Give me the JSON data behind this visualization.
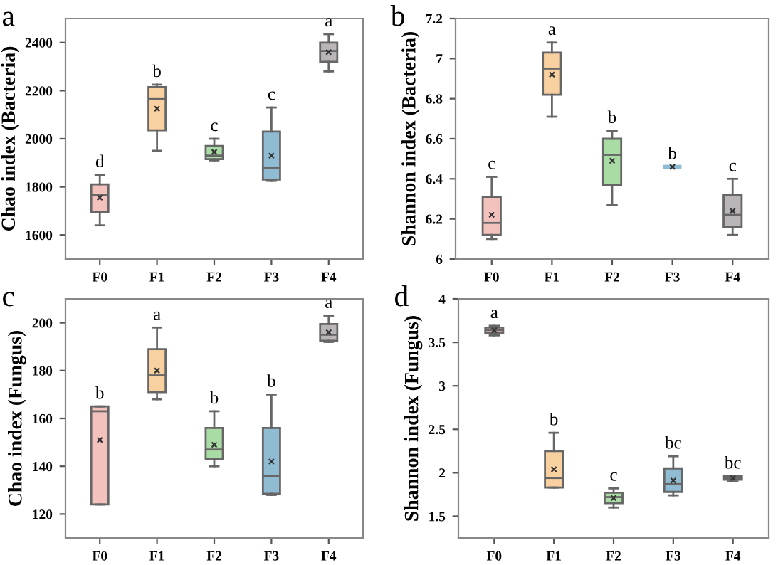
{
  "chart_data": [
    {
      "type": "box",
      "title": "a",
      "ylabel": "Chao index (Bacteria)",
      "categories": [
        "F0",
        "F1",
        "F2",
        "F3",
        "F4"
      ],
      "colors": [
        "#f4c2bd",
        "#f9d0a0",
        "#a9dca4",
        "#90bcd3",
        "#b9b5b9"
      ],
      "boxes": [
        {
          "low": 1640,
          "q1": 1695,
          "median": 1765,
          "q3": 1810,
          "high": 1850,
          "mean": 1755
        },
        {
          "low": 1950,
          "q1": 2035,
          "median": 2165,
          "q3": 2215,
          "high": 2225,
          "mean": 2125
        },
        {
          "low": 1910,
          "q1": 1915,
          "median": 1930,
          "q3": 1970,
          "high": 2000,
          "mean": 1945
        },
        {
          "low": 1825,
          "q1": 1830,
          "median": 1880,
          "q3": 2030,
          "high": 2130,
          "mean": 1930
        },
        {
          "low": 2280,
          "q1": 2320,
          "median": 2365,
          "q3": 2400,
          "high": 2435,
          "mean": 2360
        }
      ],
      "annotations": [
        "d",
        "b",
        "c",
        "c",
        "a"
      ],
      "ylim": [
        1500,
        2500
      ],
      "yticks": [
        1600,
        1800,
        2000,
        2200,
        2400
      ],
      "grid": false
    },
    {
      "type": "box",
      "title": "b",
      "ylabel": "Shannon index (Bacteria)",
      "categories": [
        "F0",
        "F1",
        "F2",
        "F3",
        "F4"
      ],
      "colors": [
        "#f4c2bd",
        "#f9d0a0",
        "#a9dca4",
        "#90bcd3",
        "#b9b5b9"
      ],
      "boxes": [
        {
          "low": 6.1,
          "q1": 6.12,
          "median": 6.18,
          "q3": 6.31,
          "high": 6.41,
          "mean": 6.22
        },
        {
          "low": 6.71,
          "q1": 6.82,
          "median": 6.95,
          "q3": 7.03,
          "high": 7.08,
          "mean": 6.92
        },
        {
          "low": 6.27,
          "q1": 6.37,
          "median": 6.52,
          "q3": 6.6,
          "high": 6.64,
          "mean": 6.49
        },
        {
          "low": 6.46,
          "q1": 6.46,
          "median": 6.46,
          "q3": 6.46,
          "high": 6.46,
          "mean": 6.46
        },
        {
          "low": 6.12,
          "q1": 6.16,
          "median": 6.22,
          "q3": 6.32,
          "high": 6.4,
          "mean": 6.24
        }
      ],
      "annotations": [
        "c",
        "a",
        "b",
        "b",
        "c"
      ],
      "ylim": [
        6,
        7.2
      ],
      "yticks": [
        6,
        6.2,
        6.4,
        6.6,
        6.8,
        7,
        7.2
      ],
      "grid": false
    },
    {
      "type": "box",
      "title": "c",
      "ylabel": "Chao index (Fungus)",
      "categories": [
        "F0",
        "F1",
        "F2",
        "F3",
        "F4"
      ],
      "colors": [
        "#f4c2bd",
        "#f9d0a0",
        "#a9dca4",
        "#90bcd3",
        "#b9b5b9"
      ],
      "boxes": [
        {
          "low": 124,
          "q1": 124,
          "median": 163,
          "q3": 165,
          "high": 165,
          "mean": 151
        },
        {
          "low": 168,
          "q1": 171,
          "median": 178,
          "q3": 189,
          "high": 198,
          "mean": 180
        },
        {
          "low": 140,
          "q1": 143,
          "median": 147,
          "q3": 156,
          "high": 163,
          "mean": 149
        },
        {
          "low": 128,
          "q1": 128.5,
          "median": 136,
          "q3": 156,
          "high": 170,
          "mean": 142
        },
        {
          "low": 192,
          "q1": 192.5,
          "median": 195,
          "q3": 199.5,
          "high": 203,
          "mean": 196
        }
      ],
      "annotations": [
        "b",
        "a",
        "b",
        "b",
        "a"
      ],
      "ylim": [
        110,
        210
      ],
      "yticks": [
        120,
        140,
        160,
        180,
        200
      ],
      "grid": false
    },
    {
      "type": "box",
      "title": "d",
      "ylabel": "Shannon index (Fungus)",
      "categories": [
        "F0",
        "F1",
        "F2",
        "F3",
        "F4"
      ],
      "colors": [
        "#f4c2bd",
        "#f9d0a0",
        "#a9dca4",
        "#90bcd3",
        "#b9b5b9"
      ],
      "boxes": [
        {
          "low": 3.58,
          "q1": 3.61,
          "median": 3.64,
          "q3": 3.67,
          "high": 3.69,
          "mean": 3.64
        },
        {
          "low": 1.83,
          "q1": 1.83,
          "median": 1.94,
          "q3": 2.25,
          "high": 2.46,
          "mean": 2.04
        },
        {
          "low": 1.6,
          "q1": 1.65,
          "median": 1.72,
          "q3": 1.77,
          "high": 1.82,
          "mean": 1.71
        },
        {
          "low": 1.74,
          "q1": 1.78,
          "median": 1.87,
          "q3": 2.05,
          "high": 2.19,
          "mean": 1.91
        },
        {
          "low": 1.9,
          "q1": 1.92,
          "median": 1.94,
          "q3": 1.96,
          "high": 1.96,
          "mean": 1.94
        }
      ],
      "annotations": [
        "a",
        "b",
        "c",
        "bc",
        "bc"
      ],
      "ylim": [
        1.25,
        4
      ],
      "yticks": [
        1.5,
        2,
        2.5,
        3,
        3.5,
        4
      ],
      "grid": false
    }
  ]
}
